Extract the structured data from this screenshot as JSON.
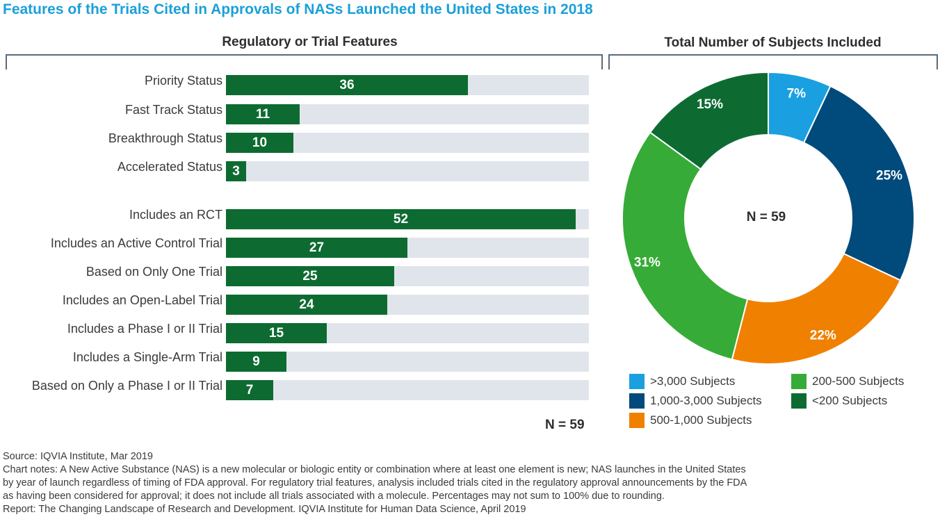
{
  "title": "Features of the Trials Cited in Approvals of NASs Launched the United States in 2018",
  "left_heading": "Regulatory or Trial Features",
  "right_heading": "Total Number of Subjects Included",
  "left_n": "N = 59",
  "donut_center": "N = 59",
  "colors": {
    "title": "#1aa0d8",
    "bar": "#0d6b31",
    "track": "#e0e5eb"
  },
  "chart_data": [
    {
      "type": "bar",
      "orientation": "horizontal",
      "categories": [
        "Priority Status",
        "Fast Track Status",
        "Breakthrough Status",
        "Accelerated Status",
        "Includes an RCT",
        "Includes an Active Control Trial",
        "Based on Only One Trial",
        "Includes an Open-Label Trial",
        "Includes a Phase I or II Trial",
        "Includes a Single-Arm Trial",
        "Based on Only a Phase I or II Trial"
      ],
      "values": [
        36,
        11,
        10,
        3,
        52,
        27,
        25,
        24,
        15,
        9,
        7
      ],
      "max": 54,
      "title": "Regulatory or Trial Features",
      "note": "N = 59"
    },
    {
      "type": "pie",
      "donut": true,
      "title": "Total Number of Subjects Included",
      "center_label": "N = 59",
      "slices": [
        {
          "name": ">3,000 Subjects",
          "value": 7,
          "label": "7%",
          "color": "#1aa0e0"
        },
        {
          "name": "1,000-3,000 Subjects",
          "value": 25,
          "label": "25%",
          "color": "#004a7c"
        },
        {
          "name": "500-1,000 Subjects",
          "value": 22,
          "label": "22%",
          "color": "#f08000"
        },
        {
          "name": "200-500 Subjects",
          "value": 31,
          "label": "31%",
          "color": "#36ab37"
        },
        {
          "name": "<200 Subjects",
          "value": 15,
          "label": "15%",
          "color": "#0d6b31"
        }
      ]
    }
  ],
  "notes": {
    "source": "Source: IQVIA Institute, Mar 2019",
    "chart_notes_1": "Chart notes: A New Active Substance (NAS) is a new molecular or biologic entity or combination where at least one element is new; NAS launches in the United States",
    "chart_notes_2": "by year of launch regardless of timing of FDA approval. For regulatory trial features, analysis included trials cited in the regulatory approval announcements by the FDA",
    "chart_notes_3": "as having been considered for approval; it does not include all trials associated with a molecule. Percentages may not sum to 100% due to rounding.",
    "report": "Report: The Changing Landscape of Research and Development. IQVIA Institute for Human Data Science, April 2019"
  }
}
